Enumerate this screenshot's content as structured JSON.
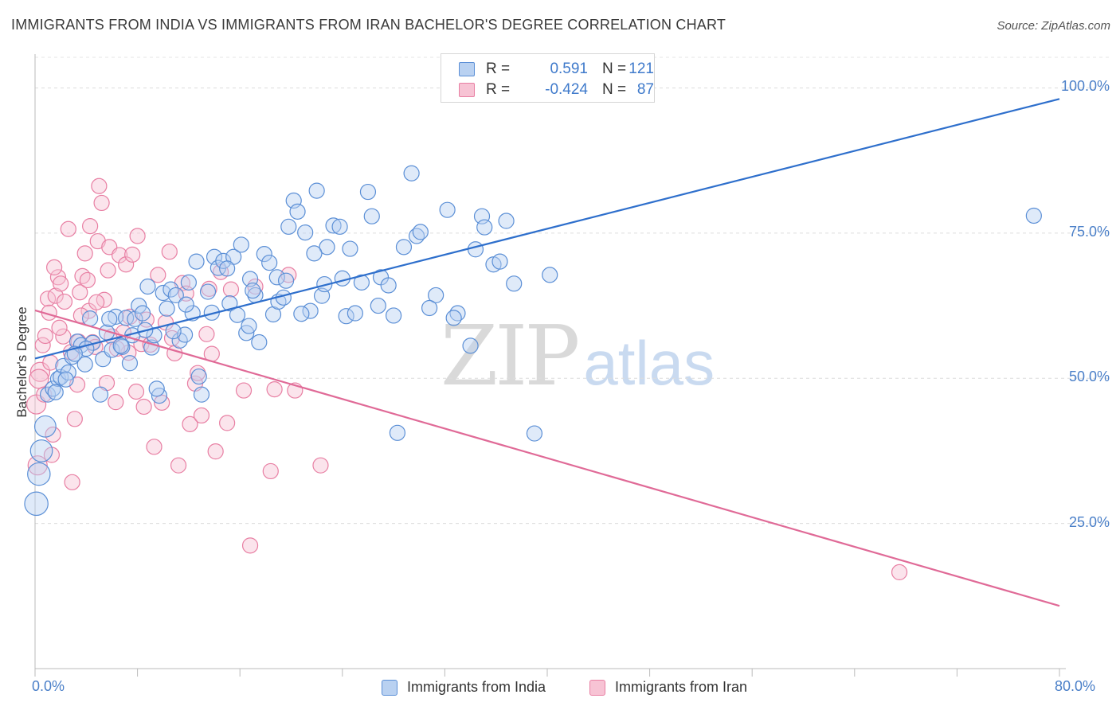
{
  "title": "IMMIGRANTS FROM INDIA VS IMMIGRANTS FROM IRAN BACHELOR'S DEGREE CORRELATION CHART",
  "source": "Source: ZipAtlas.com",
  "watermark": {
    "zip": "ZIP",
    "atlas": "atlas"
  },
  "stats": {
    "r_label": "R =",
    "n_label": "N =",
    "india": {
      "r": "0.591",
      "n": "121",
      "color": "#5b8fd6",
      "fill": "#b9d1f1"
    },
    "iran": {
      "r": "-0.424",
      "n": "87",
      "color": "#e87fa3",
      "fill": "#f7c3d4"
    }
  },
  "chart_data": {
    "type": "scatter",
    "title": "IMMIGRANTS FROM INDIA VS IMMIGRANTS FROM IRAN BACHELOR'S DEGREE CORRELATION CHART",
    "ylabel": "Bachelor's Degree",
    "xlim": [
      0,
      80
    ],
    "ylim": [
      0,
      105
    ],
    "x_tick_labels": [
      "0.0%",
      "80.0%"
    ],
    "y_ticks": [
      25,
      50,
      75,
      100
    ],
    "y_tick_labels": [
      "25.0%",
      "50.0%",
      "75.0%",
      "100.0%"
    ],
    "grid": "horizontal dashed",
    "legend_position": "bottom-center",
    "series": [
      {
        "name": "Immigrants from India",
        "color": "#5b8fd6",
        "trend": {
          "x": [
            0,
            80
          ],
          "y": [
            53.4,
            98.1
          ]
        },
        "points": [
          [
            0.1,
            28.4
          ],
          [
            0.3,
            33.5
          ],
          [
            0.5,
            37.5
          ],
          [
            0.8,
            41.7
          ],
          [
            1.0,
            47.2
          ],
          [
            1.4,
            48.2
          ],
          [
            1.8,
            49.9
          ],
          [
            2.0,
            50.2
          ],
          [
            2.2,
            52.1
          ],
          [
            2.6,
            51.0
          ],
          [
            2.9,
            53.7
          ],
          [
            3.3,
            56.3
          ],
          [
            3.6,
            55.7
          ],
          [
            3.9,
            52.4
          ],
          [
            4.3,
            60.3
          ],
          [
            4.5,
            56.1
          ],
          [
            5.1,
            47.2
          ],
          [
            5.3,
            53.3
          ],
          [
            5.6,
            57.9
          ],
          [
            6.0,
            54.9
          ],
          [
            6.3,
            60.6
          ],
          [
            6.8,
            55.4
          ],
          [
            7.1,
            60.4
          ],
          [
            7.4,
            52.6
          ],
          [
            7.6,
            57.4
          ],
          [
            7.8,
            60.2
          ],
          [
            8.1,
            62.5
          ],
          [
            8.4,
            61.2
          ],
          [
            8.8,
            65.8
          ],
          [
            9.1,
            55.3
          ],
          [
            9.3,
            57.4
          ],
          [
            9.7,
            47.0
          ],
          [
            10.0,
            64.7
          ],
          [
            10.3,
            62.0
          ],
          [
            10.6,
            65.3
          ],
          [
            11.0,
            64.3
          ],
          [
            11.3,
            56.5
          ],
          [
            11.7,
            57.5
          ],
          [
            12.0,
            66.5
          ],
          [
            12.3,
            61.2
          ],
          [
            12.6,
            70.1
          ],
          [
            12.8,
            50.3
          ],
          [
            13.0,
            47.2
          ],
          [
            13.5,
            64.9
          ],
          [
            14.0,
            70.9
          ],
          [
            14.3,
            69.0
          ],
          [
            14.7,
            70.2
          ],
          [
            15.2,
            62.9
          ],
          [
            15.5,
            70.9
          ],
          [
            15.8,
            60.9
          ],
          [
            16.1,
            73.0
          ],
          [
            16.5,
            57.8
          ],
          [
            16.8,
            67.1
          ],
          [
            17.2,
            64.3
          ],
          [
            17.5,
            56.2
          ],
          [
            17.9,
            71.4
          ],
          [
            18.3,
            69.9
          ],
          [
            18.6,
            61.0
          ],
          [
            19.0,
            63.2
          ],
          [
            19.4,
            63.9
          ],
          [
            19.8,
            76.1
          ],
          [
            20.2,
            80.6
          ],
          [
            20.5,
            78.7
          ],
          [
            21.1,
            75.1
          ],
          [
            21.5,
            61.6
          ],
          [
            22.0,
            82.3
          ],
          [
            22.4,
            64.2
          ],
          [
            22.8,
            72.6
          ],
          [
            23.3,
            76.3
          ],
          [
            23.8,
            76.1
          ],
          [
            24.3,
            60.7
          ],
          [
            24.6,
            72.3
          ],
          [
            25.0,
            61.2
          ],
          [
            25.5,
            66.5
          ],
          [
            26.0,
            82.1
          ],
          [
            26.3,
            77.9
          ],
          [
            27.0,
            67.4
          ],
          [
            27.6,
            66.0
          ],
          [
            28.3,
            40.6
          ],
          [
            28.8,
            72.6
          ],
          [
            29.4,
            85.3
          ],
          [
            29.8,
            74.5
          ],
          [
            30.1,
            75.2
          ],
          [
            31.3,
            64.3
          ],
          [
            32.2,
            79.0
          ],
          [
            33.0,
            61.2
          ],
          [
            34.0,
            55.6
          ],
          [
            34.4,
            72.2
          ],
          [
            34.9,
            77.9
          ],
          [
            35.1,
            76.0
          ],
          [
            35.8,
            69.6
          ],
          [
            36.3,
            70.1
          ],
          [
            36.8,
            77.1
          ],
          [
            37.4,
            66.3
          ],
          [
            39.0,
            40.5
          ],
          [
            40.2,
            67.8
          ],
          [
            78.0,
            78.0
          ],
          [
            6.7,
            55.6
          ],
          [
            5.8,
            60.2
          ],
          [
            4.0,
            55.1
          ],
          [
            3.1,
            54.2
          ],
          [
            2.4,
            49.8
          ],
          [
            1.6,
            47.6
          ],
          [
            9.5,
            48.2
          ],
          [
            11.8,
            62.7
          ],
          [
            13.8,
            61.3
          ],
          [
            15.0,
            68.9
          ],
          [
            16.7,
            59.0
          ],
          [
            18.9,
            67.4
          ],
          [
            20.8,
            61.1
          ],
          [
            22.6,
            66.2
          ],
          [
            24.0,
            67.2
          ],
          [
            26.8,
            62.5
          ],
          [
            28.0,
            60.8
          ],
          [
            30.8,
            62.1
          ],
          [
            32.7,
            60.4
          ],
          [
            21.8,
            71.5
          ],
          [
            19.6,
            66.8
          ],
          [
            17.0,
            65.1
          ],
          [
            10.8,
            58.1
          ],
          [
            8.6,
            58.3
          ]
        ]
      },
      {
        "name": "Immigrants from Iran",
        "color": "#e87fa3",
        "trend": {
          "x": [
            0,
            80
          ],
          "y": [
            61.7,
            10.8
          ]
        },
        "points": [
          [
            0.1,
            45.5
          ],
          [
            0.2,
            35.0
          ],
          [
            0.4,
            51.1
          ],
          [
            0.6,
            55.7
          ],
          [
            0.8,
            57.3
          ],
          [
            1.0,
            63.7
          ],
          [
            1.2,
            52.7
          ],
          [
            1.4,
            40.3
          ],
          [
            1.6,
            64.2
          ],
          [
            1.8,
            67.4
          ],
          [
            2.0,
            66.3
          ],
          [
            2.2,
            57.2
          ],
          [
            2.6,
            75.7
          ],
          [
            2.9,
            32.1
          ],
          [
            3.1,
            43.0
          ],
          [
            3.3,
            48.9
          ],
          [
            3.5,
            64.8
          ],
          [
            3.7,
            67.6
          ],
          [
            3.9,
            71.5
          ],
          [
            4.2,
            61.6
          ],
          [
            4.3,
            76.2
          ],
          [
            4.5,
            56.2
          ],
          [
            4.7,
            55.4
          ],
          [
            4.9,
            73.6
          ],
          [
            5.0,
            83.1
          ],
          [
            5.2,
            80.2
          ],
          [
            5.4,
            63.5
          ],
          [
            5.6,
            49.2
          ],
          [
            5.8,
            72.6
          ],
          [
            6.0,
            57.2
          ],
          [
            6.3,
            45.9
          ],
          [
            6.6,
            71.2
          ],
          [
            6.9,
            57.9
          ],
          [
            7.1,
            69.6
          ],
          [
            7.3,
            54.4
          ],
          [
            7.6,
            71.3
          ],
          [
            7.9,
            47.7
          ],
          [
            8.0,
            74.5
          ],
          [
            8.3,
            55.9
          ],
          [
            8.7,
            60.1
          ],
          [
            9.0,
            55.8
          ],
          [
            9.3,
            38.2
          ],
          [
            9.6,
            67.8
          ],
          [
            9.9,
            45.8
          ],
          [
            10.2,
            59.6
          ],
          [
            10.5,
            71.8
          ],
          [
            10.9,
            54.3
          ],
          [
            11.2,
            35.0
          ],
          [
            11.5,
            66.4
          ],
          [
            11.8,
            64.6
          ],
          [
            12.1,
            42.1
          ],
          [
            12.5,
            49.1
          ],
          [
            13.0,
            43.6
          ],
          [
            13.4,
            57.6
          ],
          [
            13.8,
            54.2
          ],
          [
            14.1,
            37.4
          ],
          [
            14.5,
            68.3
          ],
          [
            15.0,
            42.3
          ],
          [
            15.3,
            65.3
          ],
          [
            16.3,
            47.9
          ],
          [
            16.8,
            21.2
          ],
          [
            17.2,
            65.8
          ],
          [
            18.4,
            34.0
          ],
          [
            18.7,
            48.1
          ],
          [
            19.8,
            67.8
          ],
          [
            20.3,
            47.9
          ],
          [
            22.3,
            35.0
          ],
          [
            67.5,
            16.6
          ],
          [
            0.3,
            49.9
          ],
          [
            0.7,
            47.2
          ],
          [
            1.1,
            61.3
          ],
          [
            1.5,
            69.1
          ],
          [
            1.9,
            58.7
          ],
          [
            2.3,
            63.2
          ],
          [
            2.8,
            54.5
          ],
          [
            3.4,
            56.3
          ],
          [
            4.1,
            66.9
          ],
          [
            4.8,
            63.1
          ],
          [
            5.7,
            68.6
          ],
          [
            6.4,
            55.1
          ],
          [
            7.4,
            60.6
          ],
          [
            8.5,
            45.1
          ],
          [
            10.7,
            56.9
          ],
          [
            12.7,
            50.9
          ],
          [
            13.6,
            65.4
          ],
          [
            1.3,
            36.8
          ],
          [
            3.6,
            60.8
          ]
        ]
      }
    ]
  },
  "legend": {
    "india": "Immigrants from India",
    "iran": "Immigrants from Iran"
  }
}
